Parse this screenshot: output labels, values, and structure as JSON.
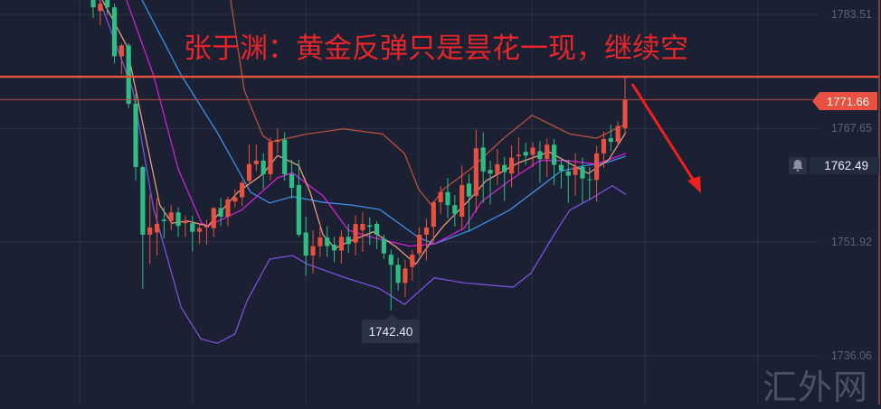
{
  "chart_data": {
    "type": "candlestick",
    "title": "张于渊：黄金反弹只是昙花一现，继续空",
    "y_ticks": [
      "1783.51",
      "1767.65",
      "1751.92",
      "1736.06"
    ],
    "ylim": [
      1733.5,
      1786.5
    ],
    "grid": true,
    "up_color": "#e8503f",
    "down_color": "#2fbd85",
    "candles_ohlc": [
      [
        1786,
        1787,
        1783,
        1784.5
      ],
      [
        1784,
        1787,
        1782,
        1785
      ],
      [
        1786,
        1787,
        1783.5,
        1784.5
      ],
      [
        1784.5,
        1785,
        1776.7,
        1777.7
      ],
      [
        1777.7,
        1779.5,
        1775.2,
        1779.2
      ],
      [
        1779.2,
        1779.5,
        1770.5,
        1771.1
      ],
      [
        1771.1,
        1772.5,
        1760.4,
        1762.3
      ],
      [
        1762.3,
        1762.5,
        1745.4,
        1752.9
      ],
      [
        1752.9,
        1758.5,
        1748.8,
        1753.9
      ],
      [
        1753.2,
        1758,
        1750,
        1754.4
      ],
      [
        1755,
        1756.7,
        1752.4,
        1754.8
      ],
      [
        1754.8,
        1757,
        1753.5,
        1756
      ],
      [
        1756,
        1756.7,
        1752.6,
        1754.1
      ],
      [
        1754.5,
        1755.5,
        1752.6,
        1754.8
      ],
      [
        1754.5,
        1755.5,
        1750.6,
        1753.3
      ],
      [
        1753.3,
        1754.3,
        1751.6,
        1753.8
      ],
      [
        1753.9,
        1755,
        1751.5,
        1754.1
      ],
      [
        1753.8,
        1756.7,
        1752.6,
        1756.6
      ],
      [
        1756.6,
        1758,
        1754.1,
        1755.4
      ],
      [
        1755.4,
        1758.2,
        1754.1,
        1757.8
      ],
      [
        1757.5,
        1759.2,
        1756.7,
        1758.1
      ],
      [
        1758.1,
        1760.4,
        1756.9,
        1760.1
      ],
      [
        1760.4,
        1765.4,
        1759.8,
        1762.7
      ],
      [
        1762.7,
        1765.4,
        1761.7,
        1763.2
      ],
      [
        1763.2,
        1764.2,
        1759.2,
        1761.3
      ],
      [
        1761.3,
        1766.4,
        1760.4,
        1765.8
      ],
      [
        1765.8,
        1767.6,
        1764.2,
        1766.1
      ],
      [
        1766.1,
        1767.1,
        1760.4,
        1761.3
      ],
      [
        1761.3,
        1763.3,
        1757.9,
        1759.4
      ],
      [
        1759.8,
        1763.3,
        1752.6,
        1752.9
      ],
      [
        1753.2,
        1755.4,
        1747.2,
        1750
      ],
      [
        1750,
        1753.5,
        1747.5,
        1751.3
      ],
      [
        1751.3,
        1754.4,
        1749.8,
        1752.5
      ],
      [
        1752.5,
        1754.1,
        1749.8,
        1751.3
      ],
      [
        1751.5,
        1752.6,
        1749.1,
        1750.7
      ],
      [
        1750.7,
        1753.5,
        1748.9,
        1752.6
      ],
      [
        1752.6,
        1754.4,
        1750.4,
        1751.6
      ],
      [
        1751.8,
        1755.6,
        1750,
        1754.4
      ],
      [
        1753.5,
        1756,
        1750.5,
        1754.4
      ],
      [
        1754.2,
        1755.3,
        1751.5,
        1754.0
      ],
      [
        1754.4,
        1754.8,
        1750.9,
        1752.9
      ],
      [
        1752.3,
        1752.9,
        1749.5,
        1750.3
      ],
      [
        1750.1,
        1750.8,
        1742.4,
        1748.7
      ],
      [
        1748.7,
        1749.7,
        1745.1,
        1746.2
      ],
      [
        1746.2,
        1749.4,
        1744.2,
        1748.2
      ],
      [
        1748.4,
        1750.8,
        1746.5,
        1750.1
      ],
      [
        1750.3,
        1753.9,
        1749.9,
        1752.9
      ],
      [
        1752.9,
        1755.1,
        1749.3,
        1753.9
      ],
      [
        1754,
        1757.6,
        1751.8,
        1757.4
      ],
      [
        1757.4,
        1759.6,
        1755.8,
        1758.8
      ],
      [
        1758.8,
        1760.8,
        1755.2,
        1757.0
      ],
      [
        1757.0,
        1758.4,
        1754,
        1755.8
      ],
      [
        1755.4,
        1762.5,
        1753.5,
        1759.8
      ],
      [
        1760,
        1761.3,
        1753.3,
        1758.2
      ],
      [
        1758.3,
        1767.5,
        1756,
        1764.9
      ],
      [
        1765,
        1767.1,
        1757.3,
        1761.7
      ],
      [
        1761.9,
        1763.2,
        1757.1,
        1761.4
      ],
      [
        1761.3,
        1764.8,
        1759.8,
        1762.7
      ],
      [
        1762.6,
        1763.7,
        1757.6,
        1761.6
      ],
      [
        1761.4,
        1765.3,
        1759.5,
        1763.6
      ],
      [
        1763.8,
        1766.4,
        1761.4,
        1764
      ],
      [
        1764.4,
        1765.7,
        1762.6,
        1763.9
      ],
      [
        1764,
        1765.7,
        1762.3,
        1765
      ],
      [
        1764.5,
        1765.9,
        1760.1,
        1763.4
      ],
      [
        1763.4,
        1766.3,
        1760.9,
        1765.4
      ],
      [
        1765.4,
        1766.2,
        1759.8,
        1762.6
      ],
      [
        1762.6,
        1763.6,
        1759.3,
        1761.8
      ],
      [
        1761.7,
        1763.3,
        1757.3,
        1761.1
      ],
      [
        1761.2,
        1764.2,
        1758.3,
        1762.3
      ],
      [
        1762.3,
        1763.6,
        1757.3,
        1760.7
      ],
      [
        1760.6,
        1762.3,
        1757.7,
        1760.5
      ],
      [
        1760.5,
        1765.2,
        1757.5,
        1764.2
      ],
      [
        1764.2,
        1767.2,
        1762.2,
        1766.2
      ],
      [
        1766.3,
        1768.2,
        1764.5,
        1765.8
      ],
      [
        1765.8,
        1768.6,
        1765.2,
        1768
      ],
      [
        1767.7,
        1774.8,
        1766.8,
        1771.66
      ]
    ],
    "indicator_lines": [
      {
        "color": "#b9503f",
        "points": [
          [
            17,
            1790
          ],
          [
            19.4,
            1785.5
          ],
          [
            21.3,
            1773.0
          ],
          [
            23.9,
            1766.7
          ],
          [
            25.1,
            1765.8
          ],
          [
            30.2,
            1766.9
          ],
          [
            35.3,
            1767.6
          ],
          [
            40.8,
            1766.9
          ],
          [
            43.9,
            1764.2
          ],
          [
            45.9,
            1759.2
          ],
          [
            47.7,
            1757.0
          ],
          [
            49.4,
            1759.2
          ],
          [
            53.2,
            1762.0
          ],
          [
            57.9,
            1766.3
          ],
          [
            61.9,
            1769.5
          ],
          [
            67.2,
            1766.9
          ],
          [
            71,
            1766.3
          ],
          [
            75.1,
            1768.3
          ]
        ]
      },
      {
        "color": "#7d4fe0",
        "points": [
          [
            0.9,
            1785.5
          ],
          [
            5.6,
            1773.0
          ],
          [
            8.5,
            1756.6
          ],
          [
            12.4,
            1742.8
          ],
          [
            15.2,
            1738.4
          ],
          [
            17.5,
            1737.8
          ],
          [
            20,
            1739.1
          ],
          [
            21.7,
            1743.7
          ],
          [
            24.9,
            1749.5
          ],
          [
            28.1,
            1750.0
          ],
          [
            30.2,
            1748.8
          ],
          [
            35.3,
            1747.0
          ],
          [
            40.4,
            1745.4
          ],
          [
            43.9,
            1743.2
          ],
          [
            48.1,
            1746.9
          ],
          [
            52.3,
            1746.2
          ],
          [
            59.2,
            1745.6
          ],
          [
            61.7,
            1747.5
          ],
          [
            65,
            1752.9
          ],
          [
            67.2,
            1756.3
          ],
          [
            70.2,
            1757.9
          ],
          [
            73.2,
            1759.7
          ],
          [
            75.1,
            1758.5
          ]
        ]
      },
      {
        "color": "#3d8fe8",
        "points": [
          [
            6.9,
            1785.5
          ],
          [
            12.4,
            1775.1
          ],
          [
            17.5,
            1767.1
          ],
          [
            22.2,
            1758.8
          ],
          [
            24.9,
            1757.3
          ],
          [
            28.1,
            1758.2
          ],
          [
            32.4,
            1757.4
          ],
          [
            36.6,
            1757.0
          ],
          [
            40.4,
            1756.4
          ],
          [
            45.9,
            1752.5
          ],
          [
            48.1,
            1751.6
          ],
          [
            53.2,
            1753.5
          ],
          [
            58.7,
            1756.3
          ],
          [
            63,
            1759.5
          ],
          [
            65.9,
            1761.7
          ],
          [
            69.4,
            1762.5
          ],
          [
            72.3,
            1762.9
          ],
          [
            75.1,
            1763.8
          ]
        ]
      },
      {
        "color": "#d21fd6",
        "points": [
          [
            4.7,
            1785.5
          ],
          [
            8.5,
            1775.1
          ],
          [
            12,
            1762.0
          ],
          [
            15.3,
            1754.5
          ],
          [
            16.2,
            1754.1
          ],
          [
            20.9,
            1756.3
          ],
          [
            26,
            1760.8
          ],
          [
            28.1,
            1761.5
          ],
          [
            32.4,
            1758.3
          ],
          [
            36,
            1753.5
          ],
          [
            39.5,
            1752.5
          ],
          [
            44.6,
            1751.3
          ],
          [
            48.1,
            1751.6
          ],
          [
            52.3,
            1753.8
          ],
          [
            54.8,
            1757.5
          ],
          [
            58.7,
            1760.4
          ],
          [
            63,
            1763.2
          ],
          [
            66.8,
            1763.2
          ],
          [
            71,
            1762.7
          ],
          [
            75.1,
            1764.2
          ]
        ]
      },
      {
        "color": "#e89a80",
        "points": [
          [
            1.3,
            1785.5
          ],
          [
            4.7,
            1779.2
          ],
          [
            6.9,
            1768.8
          ],
          [
            9.4,
            1757.0
          ],
          [
            11.1,
            1754.5
          ],
          [
            13.3,
            1754.8
          ],
          [
            16.2,
            1754.1
          ],
          [
            20.4,
            1758.8
          ],
          [
            23.9,
            1761.3
          ],
          [
            26,
            1763.9
          ],
          [
            29,
            1762.5
          ],
          [
            30.6,
            1758.8
          ],
          [
            32.4,
            1752.9
          ],
          [
            34.1,
            1751.0
          ],
          [
            36,
            1751.9
          ],
          [
            39.5,
            1753.3
          ],
          [
            42.6,
            1751.3
          ],
          [
            45.5,
            1748.8
          ],
          [
            47.7,
            1752.0
          ],
          [
            49.4,
            1754.1
          ],
          [
            53.2,
            1757.9
          ],
          [
            55.4,
            1760.4
          ],
          [
            60,
            1762.9
          ],
          [
            64.3,
            1764.4
          ],
          [
            66.3,
            1763.3
          ],
          [
            69.8,
            1761.4
          ],
          [
            72.7,
            1763.3
          ],
          [
            75.1,
            1767.1
          ]
        ]
      }
    ],
    "resistance_line": {
      "price": 1774.85,
      "color": "#e0523a"
    },
    "current_price": "1771.66",
    "alert_price": "1762.49",
    "low_marker": {
      "label": "1742.40",
      "bar_index": 42
    },
    "arrow": {
      "color": "#f0201c",
      "direction": "down"
    }
  },
  "watermark": "汇外网",
  "icons": {
    "alert": "bell-icon"
  }
}
